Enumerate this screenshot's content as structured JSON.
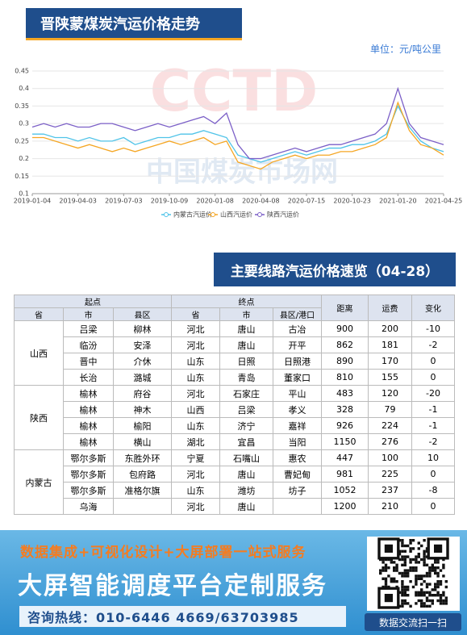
{
  "header": {
    "title": "晋陕蒙煤炭汽运价格走势",
    "unit": "单位：元/吨公里",
    "watermark_logo": "CCTD",
    "watermark_text": "中国煤炭市场网"
  },
  "chart_data": {
    "type": "line",
    "categories": [
      "2019-01-04",
      null,
      null,
      null,
      "2019-04-03",
      null,
      null,
      null,
      "2019-07-03",
      null,
      null,
      null,
      "2019-10-09",
      null,
      null,
      null,
      "2020-01-08",
      null,
      null,
      null,
      "2020-04-08",
      null,
      null,
      null,
      "2020-07-15",
      null,
      null,
      null,
      "2020-10-23",
      null,
      null,
      null,
      "2021-01-20",
      null,
      null,
      null,
      "2021-04-25"
    ],
    "series": [
      {
        "name": "内蒙古汽运价",
        "color": "#4fc3e8",
        "values": [
          0.27,
          0.27,
          0.26,
          0.26,
          0.25,
          0.26,
          0.25,
          0.25,
          0.26,
          0.24,
          0.25,
          0.26,
          0.26,
          0.27,
          0.27,
          0.28,
          0.27,
          0.26,
          0.21,
          0.2,
          0.19,
          0.2,
          0.21,
          0.22,
          0.21,
          0.22,
          0.23,
          0.23,
          0.24,
          0.24,
          0.25,
          0.27,
          0.35,
          0.29,
          0.25,
          0.23,
          0.22
        ]
      },
      {
        "name": "山西汽运价",
        "color": "#f5a623",
        "values": [
          0.26,
          0.26,
          0.25,
          0.24,
          0.23,
          0.24,
          0.23,
          0.22,
          0.23,
          0.22,
          0.23,
          0.24,
          0.25,
          0.24,
          0.25,
          0.26,
          0.24,
          0.25,
          0.19,
          0.18,
          0.17,
          0.19,
          0.2,
          0.21,
          0.2,
          0.21,
          0.21,
          0.22,
          0.22,
          0.23,
          0.24,
          0.26,
          0.36,
          0.28,
          0.24,
          0.23,
          0.21
        ]
      },
      {
        "name": "陕西汽运价",
        "color": "#7b5fc7",
        "values": [
          0.29,
          0.3,
          0.29,
          0.3,
          0.29,
          0.29,
          0.3,
          0.3,
          0.29,
          0.28,
          0.29,
          0.3,
          0.29,
          0.3,
          0.31,
          0.32,
          0.3,
          0.33,
          0.24,
          0.2,
          0.2,
          0.21,
          0.22,
          0.23,
          0.22,
          0.23,
          0.24,
          0.24,
          0.25,
          0.26,
          0.27,
          0.3,
          0.4,
          0.3,
          0.26,
          0.25,
          0.24
        ]
      }
    ],
    "ylim": [
      0.1,
      0.45
    ],
    "yticks": [
      0.1,
      0.15,
      0.2,
      0.25,
      0.3,
      0.35,
      0.4,
      0.45
    ],
    "grid": true,
    "legend": "bottom"
  },
  "section": {
    "title": "主要线路汽运价格速览（04-28）"
  },
  "table": {
    "header_groups": [
      "起点",
      "终点"
    ],
    "columns": [
      "省",
      "市",
      "县区",
      "省",
      "市",
      "县区/港口",
      "距离",
      "运费",
      "变化"
    ],
    "groups": [
      {
        "province": "山西",
        "rows": [
          [
            "吕梁",
            "柳林",
            "河北",
            "唐山",
            "古冶",
            900,
            200,
            -10
          ],
          [
            "临汾",
            "安泽",
            "河北",
            "唐山",
            "开平",
            862,
            181,
            -2
          ],
          [
            "晋中",
            "介休",
            "山东",
            "日照",
            "日照港",
            890,
            170,
            0
          ],
          [
            "长治",
            "潞城",
            "山东",
            "青岛",
            "董家口",
            810,
            155,
            0
          ]
        ]
      },
      {
        "province": "陕西",
        "rows": [
          [
            "榆林",
            "府谷",
            "河北",
            "石家庄",
            "平山",
            483,
            120,
            -20
          ],
          [
            "榆林",
            "神木",
            "山西",
            "吕梁",
            "孝义",
            328,
            79,
            -1
          ],
          [
            "榆林",
            "榆阳",
            "山东",
            "济宁",
            "嘉祥",
            926,
            224,
            -1
          ],
          [
            "榆林",
            "横山",
            "湖北",
            "宜昌",
            "当阳",
            1150,
            276,
            -2
          ]
        ]
      },
      {
        "province": "内蒙古",
        "rows": [
          [
            "鄂尔多斯",
            "东胜外环",
            "宁夏",
            "石嘴山",
            "惠农",
            447,
            100,
            10
          ],
          [
            "鄂尔多斯",
            "包府路",
            "河北",
            "唐山",
            "曹妃甸",
            981,
            225,
            0
          ],
          [
            "鄂尔多斯",
            "准格尔旗",
            "山东",
            "潍坊",
            "坊子",
            1052,
            237,
            -8
          ],
          [
            "乌海",
            null,
            "河北",
            "唐山",
            null,
            1200,
            210,
            0
          ]
        ]
      }
    ]
  },
  "footer": {
    "line1": "数据集成+可视化设计+大屏部署一站式服务",
    "line2": "大屏智能调度平台定制服务",
    "hotline": "咨询热线：010-6446 4669/63703985",
    "qr_caption": "数据交流扫一扫"
  }
}
